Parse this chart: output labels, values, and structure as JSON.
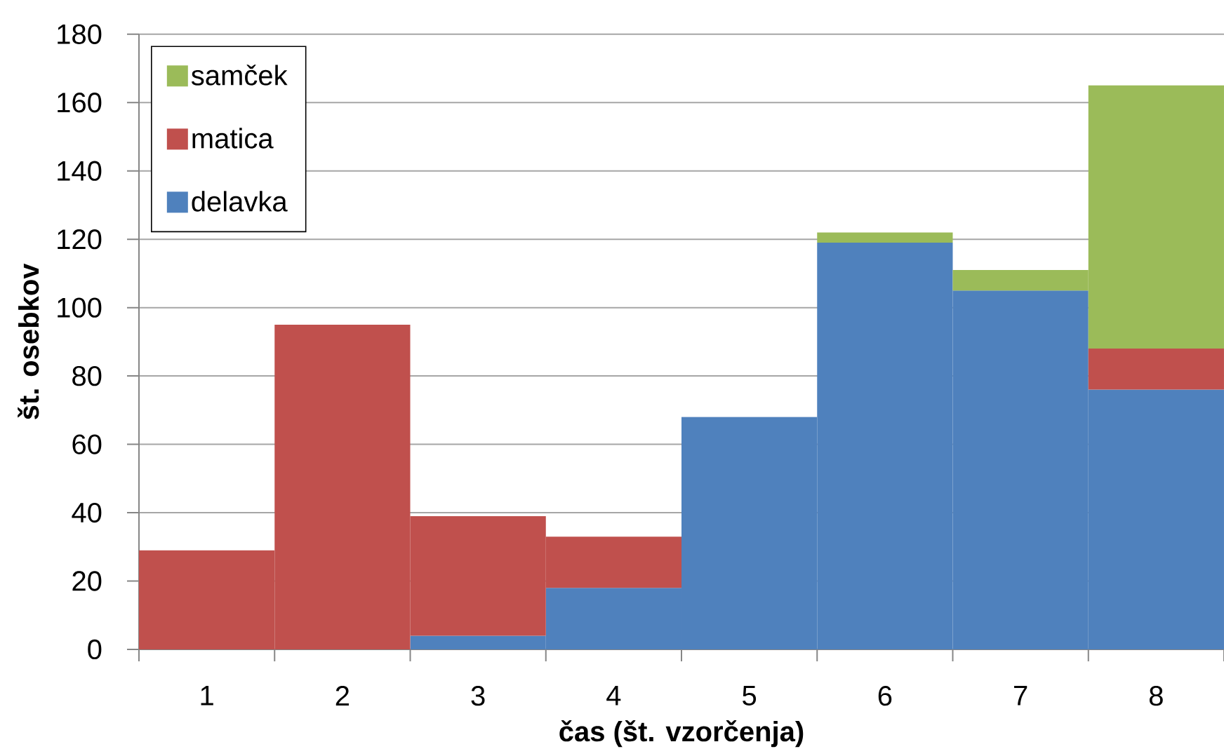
{
  "chart_data": {
    "type": "bar",
    "stacked": true,
    "xlabel": "čas (št. vzorčenja)",
    "ylabel": "št. osebkov",
    "categories": [
      "1",
      "2",
      "3",
      "4",
      "5",
      "6",
      "7",
      "8"
    ],
    "series": [
      {
        "name": "delavka",
        "color": "#4f81bd",
        "values": [
          0,
          0,
          4,
          18,
          68,
          119,
          105,
          76
        ]
      },
      {
        "name": "matica",
        "color": "#c0504d",
        "values": [
          29,
          95,
          35,
          15,
          0,
          0,
          0,
          12
        ]
      },
      {
        "name": "samček",
        "color": "#9bbb59",
        "values": [
          0,
          0,
          0,
          0,
          0,
          3,
          6,
          77
        ]
      }
    ],
    "ylim": [
      0,
      180
    ],
    "yticks": [
      0,
      20,
      40,
      60,
      80,
      100,
      120,
      140,
      160,
      180
    ],
    "grid": "y",
    "legend": "top left"
  }
}
